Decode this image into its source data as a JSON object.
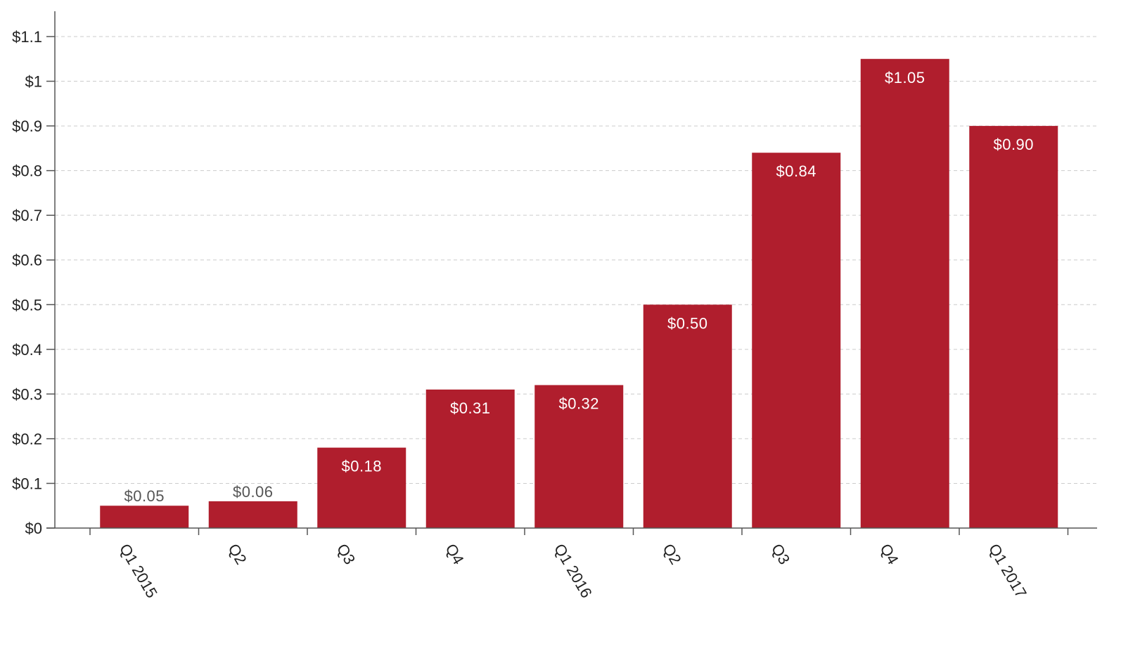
{
  "chart_data": {
    "type": "bar",
    "title": "",
    "xlabel": "",
    "ylabel": "",
    "categories": [
      "Q1 2015",
      "Q2",
      "Q3",
      "Q4",
      "Q1 2016",
      "Q2",
      "Q3",
      "Q4",
      "Q1 2017"
    ],
    "values": [
      0.05,
      0.06,
      0.18,
      0.31,
      0.32,
      0.5,
      0.84,
      1.05,
      0.9
    ],
    "data_labels": [
      "$0.05",
      "$0.06",
      "$0.18",
      "$0.31",
      "$0.32",
      "$0.50",
      "$0.84",
      "$1.05",
      "$0.90"
    ],
    "ylim": [
      0,
      1.1
    ],
    "yticks": [
      0,
      0.1,
      0.2,
      0.3,
      0.4,
      0.5,
      0.6,
      0.7,
      0.8,
      0.9,
      1.0,
      1.1
    ],
    "ytick_labels": [
      "$0",
      "$0.1",
      "$0.2",
      "$0.3",
      "$0.4",
      "$0.5",
      "$0.6",
      "$0.7",
      "$0.8",
      "$0.9",
      "$1",
      "$1.1"
    ],
    "grid": true,
    "bar_color": "#b01e2d",
    "label_inside_color": "#ffffff",
    "label_outside_color": "#555555",
    "grid_color": "#cccccc",
    "axis_color": "#555555"
  }
}
